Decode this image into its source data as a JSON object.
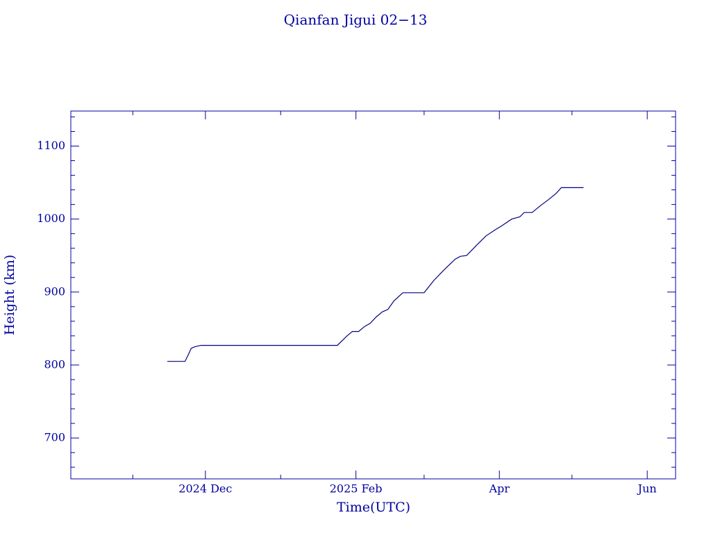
{
  "chart_data": {
    "type": "line",
    "title": "Qianfan Jigui 02−13",
    "x_label": "Time(UTC)",
    "y_label": "Height (km)",
    "color": "#000080",
    "xlim": [
      2024.763,
      2025.446
    ],
    "xticks": [
      {
        "value": 2024.915,
        "label": "2024 Dec"
      },
      {
        "value": 2025.085,
        "label": "2025 Feb"
      },
      {
        "value": 2025.247,
        "label": "Apr"
      },
      {
        "value": 2025.414,
        "label": "Jun"
      }
    ],
    "xminorticks": [
      2024.833,
      2025.0,
      2025.162,
      2025.329
    ],
    "ylim": [
      644,
      1148
    ],
    "yticks": [
      700,
      800,
      900,
      1000,
      1100
    ],
    "yminorticks": [
      660,
      680,
      720,
      740,
      760,
      780,
      820,
      840,
      860,
      880,
      920,
      940,
      960,
      980,
      1020,
      1040,
      1060,
      1080,
      1120,
      1140
    ],
    "x": [
      2024.872,
      2024.892,
      2024.896,
      2024.899,
      2024.903,
      2024.91,
      2025.003,
      2025.064,
      2025.07,
      2025.075,
      2025.081,
      2025.088,
      2025.095,
      2025.101,
      2025.108,
      2025.115,
      2025.121,
      2025.128,
      2025.138,
      2025.162,
      2025.173,
      2025.185,
      2025.197,
      2025.203,
      2025.21,
      2025.222,
      2025.232,
      2025.242,
      2025.25,
      2025.261,
      2025.27,
      2025.275,
      2025.284,
      2025.293,
      2025.303,
      2025.311,
      2025.317,
      2025.342
    ],
    "values": [
      805,
      805,
      815,
      823,
      825,
      827,
      827,
      827,
      834,
      840,
      846,
      846,
      853,
      857,
      866,
      873,
      876,
      888,
      899,
      899,
      916,
      931,
      945,
      949,
      950,
      965,
      977,
      985,
      991,
      1000,
      1003,
      1009,
      1009,
      1018,
      1027,
      1035,
      1043,
      1043
    ]
  }
}
